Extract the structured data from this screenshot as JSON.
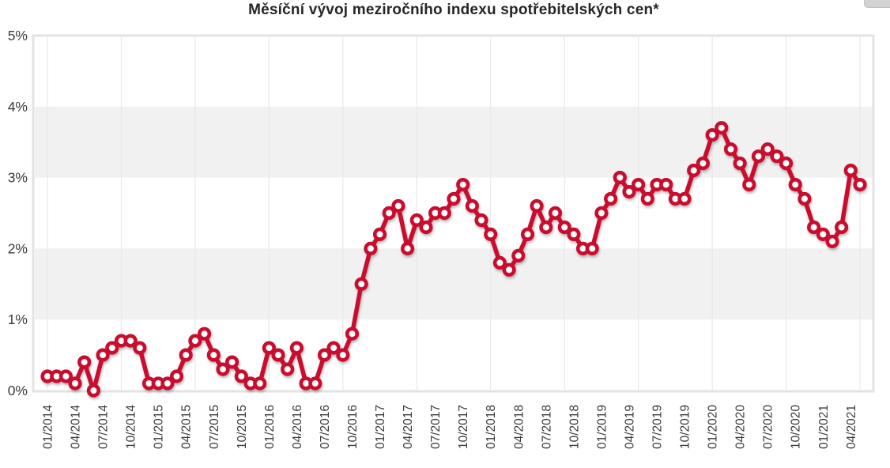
{
  "header": {
    "title": "Měsíční vývoj meziročního indexu spotřebitelských cen*"
  },
  "chart_data": {
    "type": "line",
    "title": "Měsíční vývoj meziročního indexu spotřebitelských cen*",
    "xlabel": "",
    "ylabel": "",
    "ylim": [
      0,
      5
    ],
    "y_tick_labels": [
      "0%",
      "1%",
      "2%",
      "3%",
      "4%",
      "5%"
    ],
    "x_tick_labels": [
      "01/2014",
      "04/2014",
      "07/2014",
      "10/2014",
      "01/2015",
      "04/2015",
      "07/2015",
      "10/2015",
      "01/2016",
      "04/2016",
      "07/2016",
      "10/2016",
      "01/2017",
      "04/2017",
      "07/2017",
      "10/2017",
      "01/2018",
      "04/2018",
      "07/2018",
      "10/2018",
      "01/2019",
      "04/2019",
      "07/2019",
      "10/2019",
      "01/2020",
      "04/2020",
      "07/2020",
      "10/2020",
      "01/2021",
      "04/2021"
    ],
    "x": [
      "01/2014",
      "02/2014",
      "03/2014",
      "04/2014",
      "05/2014",
      "06/2014",
      "07/2014",
      "08/2014",
      "09/2014",
      "10/2014",
      "11/2014",
      "12/2014",
      "01/2015",
      "02/2015",
      "03/2015",
      "04/2015",
      "05/2015",
      "06/2015",
      "07/2015",
      "08/2015",
      "09/2015",
      "10/2015",
      "11/2015",
      "12/2015",
      "01/2016",
      "02/2016",
      "03/2016",
      "04/2016",
      "05/2016",
      "06/2016",
      "07/2016",
      "08/2016",
      "09/2016",
      "10/2016",
      "11/2016",
      "12/2016",
      "01/2017",
      "02/2017",
      "03/2017",
      "04/2017",
      "05/2017",
      "06/2017",
      "07/2017",
      "08/2017",
      "09/2017",
      "10/2017",
      "11/2017",
      "12/2017",
      "01/2018",
      "02/2018",
      "03/2018",
      "04/2018",
      "05/2018",
      "06/2018",
      "07/2018",
      "08/2018",
      "09/2018",
      "10/2018",
      "11/2018",
      "12/2018",
      "01/2019",
      "02/2019",
      "03/2019",
      "04/2019",
      "05/2019",
      "06/2019",
      "07/2019",
      "08/2019",
      "09/2019",
      "10/2019",
      "11/2019",
      "12/2019",
      "01/2020",
      "02/2020",
      "03/2020",
      "04/2020",
      "05/2020",
      "06/2020",
      "07/2020",
      "08/2020",
      "09/2020",
      "10/2020",
      "11/2020",
      "12/2020",
      "01/2021",
      "02/2021",
      "03/2021",
      "04/2021",
      "05/2021"
    ],
    "values": [
      0.2,
      0.2,
      0.2,
      0.1,
      0.4,
      0.0,
      0.5,
      0.6,
      0.7,
      0.7,
      0.6,
      0.1,
      0.1,
      0.1,
      0.2,
      0.5,
      0.7,
      0.8,
      0.5,
      0.3,
      0.4,
      0.2,
      0.1,
      0.1,
      0.6,
      0.5,
      0.3,
      0.6,
      0.1,
      0.1,
      0.5,
      0.6,
      0.5,
      0.8,
      1.5,
      2.0,
      2.2,
      2.5,
      2.6,
      2.0,
      2.4,
      2.3,
      2.5,
      2.5,
      2.7,
      2.9,
      2.6,
      2.4,
      2.2,
      1.8,
      1.7,
      1.9,
      2.2,
      2.6,
      2.3,
      2.5,
      2.3,
      2.2,
      2.0,
      2.0,
      2.5,
      2.7,
      3.0,
      2.8,
      2.9,
      2.7,
      2.9,
      2.9,
      2.7,
      2.7,
      3.1,
      3.2,
      3.6,
      3.7,
      3.4,
      3.2,
      2.9,
      3.3,
      3.4,
      3.3,
      3.2,
      2.9,
      2.7,
      2.3,
      2.2,
      2.1,
      2.3,
      3.1,
      2.9
    ],
    "legend": "none",
    "grid": "alternating horizontal bands, light vertical gridlines"
  },
  "colors": {
    "line": "#c8102e",
    "marker_fill": "#ffffff",
    "band": "#f1f1f1",
    "gridline": "#e8e8e8",
    "plot_border": "#e3e3e3",
    "axis_text": "#3b3b3b",
    "title_text": "#262626",
    "menu_button": "#d2d2d2"
  }
}
